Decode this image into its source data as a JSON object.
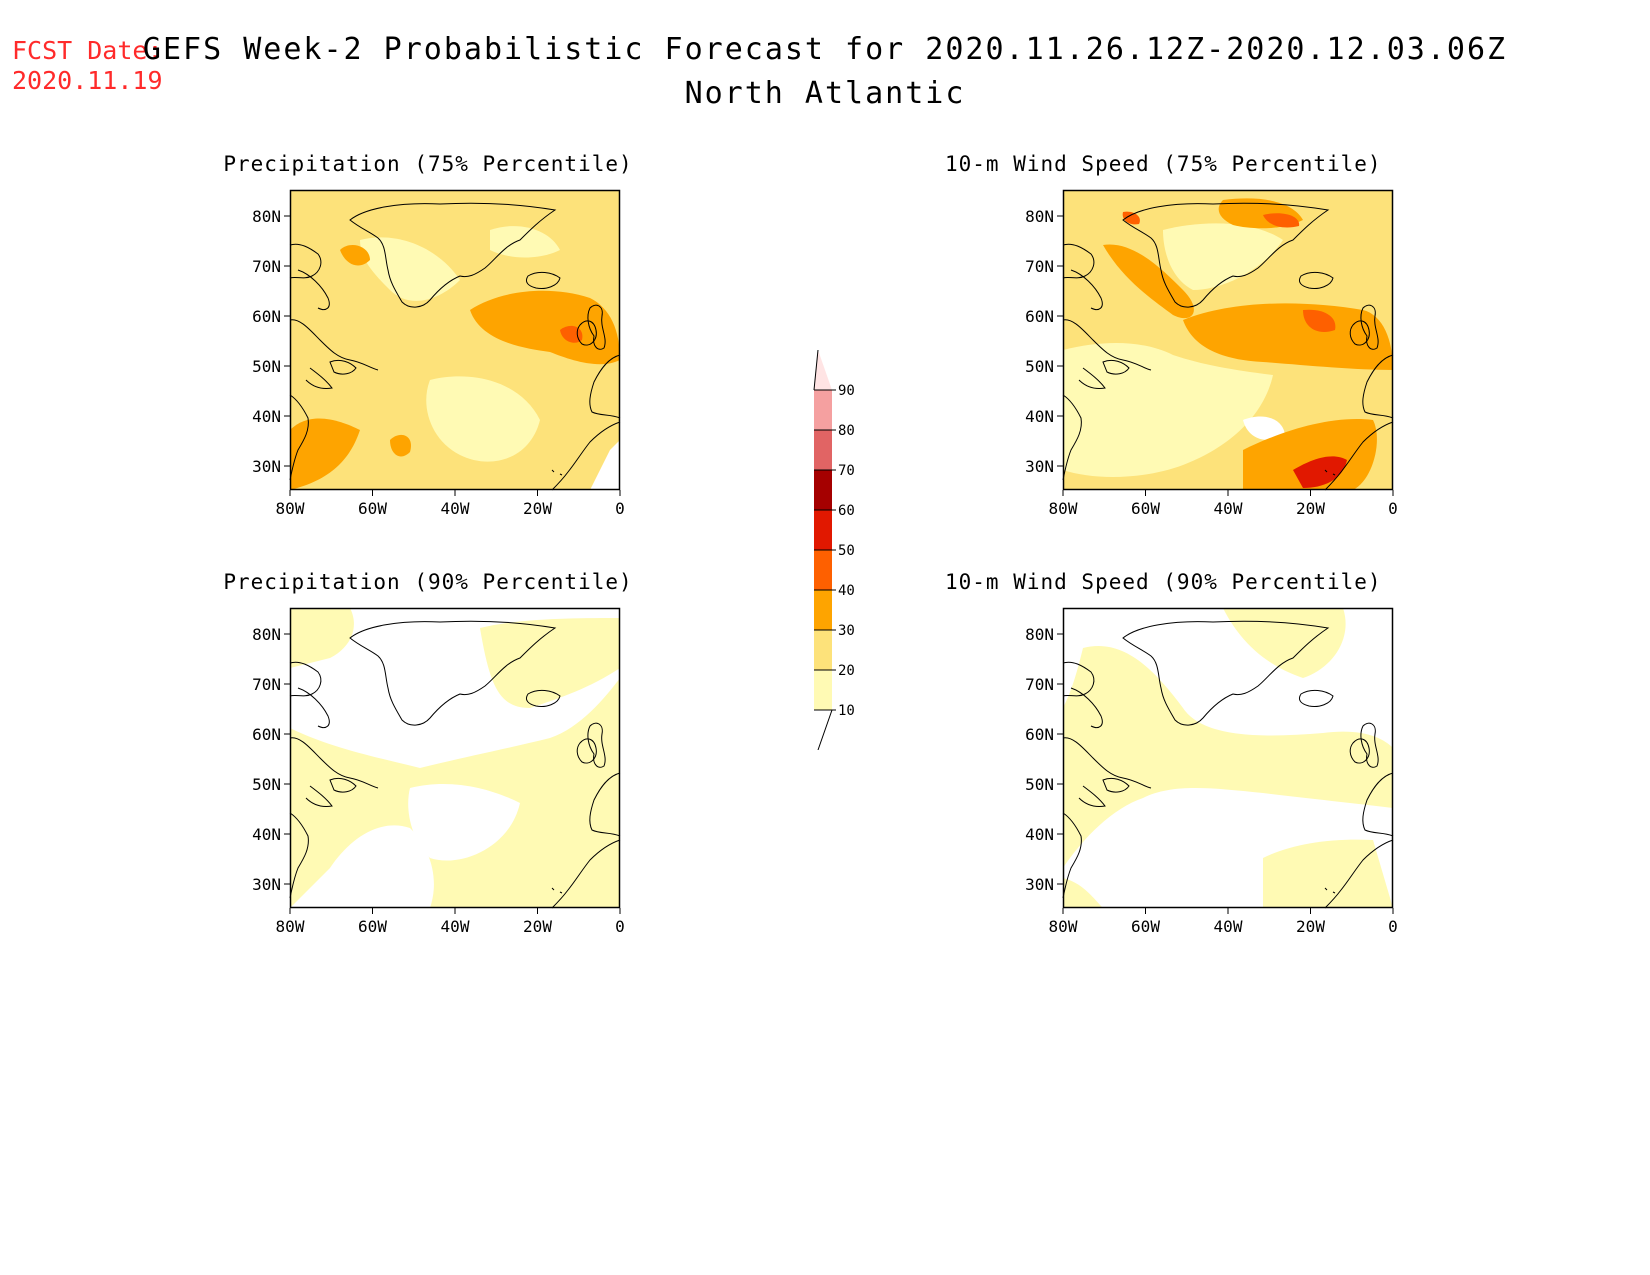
{
  "header": {
    "fcst_label": "FCST Date:",
    "fcst_date": "2020.11.19",
    "title": "GEFS Week-2 Probabilistic Forecast for 2020.11.26.12Z-2020.12.03.06Z",
    "subtitle": "North Atlantic"
  },
  "panels": [
    {
      "title": "Precipitation (75% Percentile)",
      "field": "precip75"
    },
    {
      "title": "10-m Wind Speed (75% Percentile)",
      "field": "wind75"
    },
    {
      "title": "Precipitation (90% Percentile)",
      "field": "precip90"
    },
    {
      "title": "10-m Wind Speed (90% Percentile)",
      "field": "wind90"
    }
  ],
  "axes": {
    "lat_labels": [
      "80N",
      "70N",
      "60N",
      "50N",
      "40N",
      "30N"
    ],
    "lon_labels": [
      "80W",
      "60W",
      "40W",
      "20W",
      "0"
    ]
  },
  "colorbar": {
    "levels": [
      "10",
      "20",
      "30",
      "40",
      "50",
      "60",
      "70",
      "80",
      "90"
    ],
    "colors": [
      "#fffab4",
      "#fde27a",
      "#fea400",
      "#fe6000",
      "#e11800",
      "#a50000",
      "#e16464",
      "#f5a0a0",
      "#ffe4e4"
    ]
  }
}
